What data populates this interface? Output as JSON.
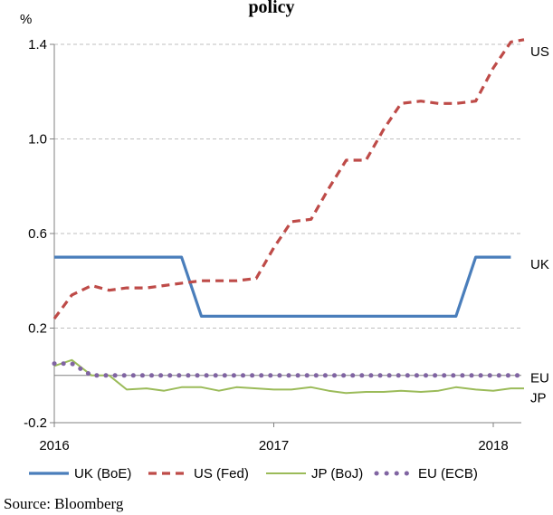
{
  "chart_data": {
    "type": "line",
    "title": "policy",
    "ylabel": "%",
    "xlabel": "",
    "ylim": [
      -0.2,
      1.4
    ],
    "yticks": [
      "-0.2",
      "0.2",
      "0.6",
      "1.0",
      "1.4"
    ],
    "ytick_values": [
      -0.2,
      0.2,
      0.6,
      1.0,
      1.4
    ],
    "xticks": [
      "2016",
      "2017",
      "2018"
    ],
    "xtick_values": [
      2016,
      2017,
      2018
    ],
    "xlim": [
      2016,
      2018.17
    ],
    "zero_line": true,
    "grid": "horizontal-dashed",
    "series": [
      {
        "name": "UK (BoE)",
        "color": "#4a7ebb",
        "style": "solid",
        "end_label": "UK",
        "x": [
          2016.0,
          2016.58,
          2016.67,
          2017.0,
          2017.5,
          2017.83,
          2017.92,
          2018.08
        ],
        "y": [
          0.5,
          0.5,
          0.25,
          0.25,
          0.25,
          0.25,
          0.5,
          0.5
        ]
      },
      {
        "name": "US (Fed)",
        "color": "#be4b48",
        "style": "dashed",
        "end_label": "US",
        "x": [
          2016.0,
          2016.08,
          2016.17,
          2016.25,
          2016.33,
          2016.42,
          2016.5,
          2016.58,
          2016.67,
          2016.75,
          2016.83,
          2016.92,
          2017.0,
          2017.08,
          2017.17,
          2017.25,
          2017.33,
          2017.42,
          2017.5,
          2017.58,
          2017.67,
          2017.75,
          2017.83,
          2017.92,
          2018.0,
          2018.08,
          2018.14
        ],
        "y": [
          0.24,
          0.34,
          0.38,
          0.36,
          0.37,
          0.37,
          0.38,
          0.39,
          0.4,
          0.4,
          0.4,
          0.41,
          0.54,
          0.65,
          0.66,
          0.79,
          0.91,
          0.91,
          1.04,
          1.15,
          1.16,
          1.15,
          1.15,
          1.16,
          1.3,
          1.41,
          1.42
        ]
      },
      {
        "name": "JP (BoJ)",
        "color": "#9bbb59",
        "style": "solid",
        "end_label": "JP",
        "x": [
          2016.0,
          2016.08,
          2016.17,
          2016.25,
          2016.33,
          2016.42,
          2016.5,
          2016.58,
          2016.67,
          2016.75,
          2016.83,
          2016.92,
          2017.0,
          2017.08,
          2017.17,
          2017.25,
          2017.33,
          2017.42,
          2017.5,
          2017.58,
          2017.67,
          2017.75,
          2017.83,
          2017.92,
          2018.0,
          2018.08,
          2018.14
        ],
        "y": [
          0.04,
          0.065,
          0.0,
          0.0,
          -0.06,
          -0.055,
          -0.065,
          -0.05,
          -0.05,
          -0.065,
          -0.05,
          -0.055,
          -0.06,
          -0.06,
          -0.05,
          -0.065,
          -0.075,
          -0.07,
          -0.07,
          -0.065,
          -0.07,
          -0.065,
          -0.05,
          -0.06,
          -0.065,
          -0.055,
          -0.055
        ]
      },
      {
        "name": "EU (ECB)",
        "color": "#8064a2",
        "style": "dotted",
        "end_label": "EU",
        "x": [
          2016.0,
          2016.08,
          2016.17,
          2016.25,
          2016.33,
          2016.42,
          2016.5,
          2016.58,
          2016.67,
          2016.75,
          2016.83,
          2016.92,
          2017.0,
          2017.08,
          2017.17,
          2017.25,
          2017.33,
          2017.42,
          2017.5,
          2017.58,
          2017.67,
          2017.75,
          2017.83,
          2017.92,
          2018.0,
          2018.08,
          2018.14
        ],
        "y": [
          0.05,
          0.05,
          0.0,
          0.0,
          0.0,
          0.0,
          0.0,
          0.0,
          0.0,
          0.0,
          0.0,
          0.0,
          0.0,
          0.0,
          0.0,
          0.0,
          0.0,
          0.0,
          0.0,
          0.0,
          0.0,
          0.0,
          0.0,
          0.0,
          0.0,
          0.0,
          0.0
        ]
      }
    ],
    "legend_position": "bottom",
    "source": "Source: Bloomberg"
  }
}
